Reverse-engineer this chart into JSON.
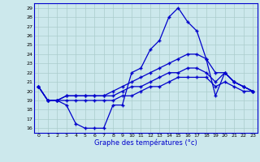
{
  "xlabel": "Graphe des températures (°c)",
  "background_color": "#cce8ec",
  "line_color": "#0000cc",
  "grid_color": "#aacccc",
  "ylim": [
    15.5,
    29.5
  ],
  "xlim": [
    -0.5,
    23.5
  ],
  "yticks": [
    16,
    17,
    18,
    19,
    20,
    21,
    22,
    23,
    24,
    25,
    26,
    27,
    28,
    29
  ],
  "xticks": [
    0,
    1,
    2,
    3,
    4,
    5,
    6,
    7,
    8,
    9,
    10,
    11,
    12,
    13,
    14,
    15,
    16,
    17,
    18,
    19,
    20,
    21,
    22,
    23
  ],
  "hours": [
    0,
    1,
    2,
    3,
    4,
    5,
    6,
    7,
    8,
    9,
    10,
    11,
    12,
    13,
    14,
    15,
    16,
    17,
    18,
    19,
    20,
    21,
    22,
    23
  ],
  "temp_spiky": [
    20.5,
    19.0,
    19.0,
    18.5,
    16.5,
    16.0,
    16.0,
    16.0,
    18.5,
    18.5,
    22.0,
    22.5,
    24.5,
    25.5,
    28.0,
    29.0,
    27.5,
    26.5,
    23.5,
    19.5,
    22.0,
    21.0,
    20.5,
    20.0
  ],
  "temp_high": [
    20.5,
    19.0,
    19.0,
    19.5,
    19.5,
    19.5,
    19.5,
    19.5,
    20.0,
    20.5,
    21.0,
    21.5,
    22.0,
    22.5,
    23.0,
    23.5,
    24.0,
    24.0,
    23.5,
    22.0,
    22.0,
    21.0,
    20.5,
    20.0
  ],
  "temp_mid": [
    20.5,
    19.0,
    19.0,
    19.5,
    19.5,
    19.5,
    19.5,
    19.5,
    19.5,
    20.0,
    20.5,
    20.5,
    21.0,
    21.5,
    22.0,
    22.0,
    22.5,
    22.5,
    22.0,
    21.0,
    22.0,
    21.0,
    20.5,
    20.0
  ],
  "temp_low": [
    20.5,
    19.0,
    19.0,
    19.0,
    19.0,
    19.0,
    19.0,
    19.0,
    19.0,
    19.5,
    19.5,
    20.0,
    20.5,
    20.5,
    21.0,
    21.5,
    21.5,
    21.5,
    21.5,
    20.5,
    21.0,
    20.5,
    20.0,
    20.0
  ]
}
